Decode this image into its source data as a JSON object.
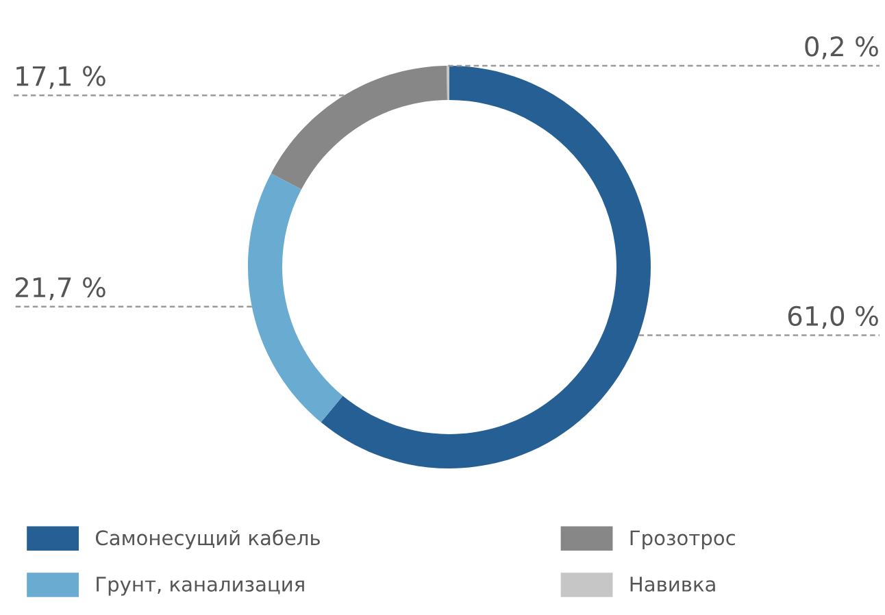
{
  "chart_data": {
    "type": "donut",
    "categories": [
      "Самонесущий кабель",
      "Грунт, канализация",
      "Грозотрос",
      "Навивка"
    ],
    "values": [
      61.0,
      21.7,
      17.1,
      0.2
    ],
    "value_labels": [
      "61,0 %",
      "21,7 %",
      "17,1 %",
      "0,2 %"
    ],
    "colors": [
      "#255f93",
      "#6aabd2",
      "#878787",
      "#c6c6c6"
    ],
    "legend": "bottom"
  }
}
